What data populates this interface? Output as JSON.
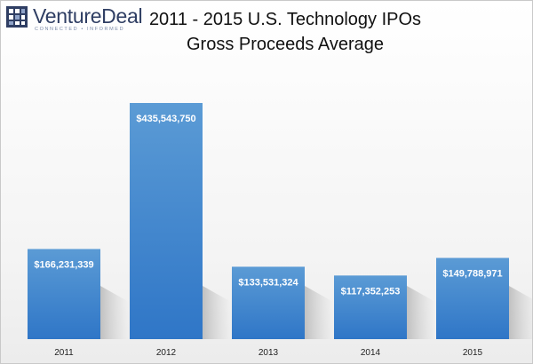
{
  "logo": {
    "name": "VentureDeal",
    "tagline": "CONNECTED • INFORMED"
  },
  "chart_data": {
    "type": "bar",
    "title": "2011 - 2015 U.S. Technology IPOs",
    "subtitle": "Gross Proceeds Average",
    "categories": [
      "2011",
      "2012",
      "2013",
      "2014",
      "2015"
    ],
    "values": [
      166231339,
      435543750,
      133531324,
      117352253,
      149788971
    ],
    "data_labels": [
      "$166,231,339",
      "$435,543,750",
      "$133,531,324",
      "$117,352,253",
      "$149,788,971"
    ],
    "xlabel": "",
    "ylabel": "",
    "ylim": [
      0,
      450000000
    ],
    "grid": false,
    "legend": "none",
    "colors": {
      "bar_top": "#5b9bd5",
      "bar_bottom": "#2f76c7",
      "label": "#ffffff"
    }
  }
}
